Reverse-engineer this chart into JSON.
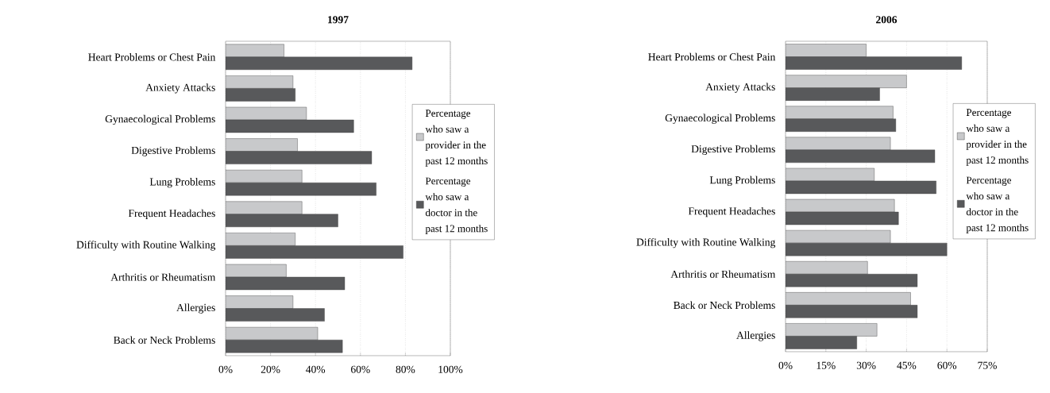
{
  "chart_data": [
    {
      "type": "bar",
      "orientation": "horizontal",
      "title": "1997",
      "categories": [
        "Heart Problems or Chest Pain",
        "Anxiety Attacks",
        "Gynaecological Problems",
        "Digestive Problems",
        "Lung Problems",
        "Frequent Headaches",
        "Difficulty with Routine Walking",
        "Arthritis or Rheumatism",
        "Allergies",
        "Back or Neck Problems"
      ],
      "series": [
        {
          "name": "Percentage who saw a provider in the past 12 months",
          "color": "#c8c9cb",
          "values": [
            26,
            30,
            36,
            32,
            34,
            34,
            31,
            27,
            30,
            41
          ]
        },
        {
          "name": "Percentage who saw a doctor in the past 12 months",
          "color": "#58595b",
          "values": [
            83,
            31,
            57,
            65,
            67,
            50,
            79,
            53,
            44,
            52
          ]
        }
      ],
      "xlim": [
        0,
        100
      ],
      "xticks": [
        {
          "value": 0,
          "label": "0%"
        },
        {
          "value": 20,
          "label": "20%"
        },
        {
          "value": 40,
          "label": "40%"
        },
        {
          "value": 60,
          "label": "60%"
        },
        {
          "value": 80,
          "label": "80%"
        },
        {
          "value": 100,
          "label": "100%"
        }
      ],
      "grid": "x",
      "legend": "right"
    },
    {
      "type": "bar",
      "orientation": "horizontal",
      "title": "2006",
      "categories": [
        "Heart Problems or Chest Pain",
        "Anxiety Attacks",
        "Gynaecological Problems",
        "Digestive Problems",
        "Lung Problems",
        "Frequent Headaches",
        "Difficulty with Routine Walking",
        "Arthritis or Rheumatism",
        "Back or Neck Problems",
        "Allergies"
      ],
      "series": [
        {
          "name": "Percentage who saw a provider in the past 12 months",
          "color": "#c8c9cb",
          "values": [
            30,
            45,
            40,
            39,
            33,
            40.5,
            39,
            30.5,
            46.5,
            34
          ]
        },
        {
          "name": "Percentage who saw a doctor in the past 12 months",
          "color": "#58595b",
          "values": [
            65.5,
            35,
            41,
            55.5,
            56,
            42,
            60,
            49,
            49,
            26.5
          ]
        }
      ],
      "xlim": [
        0,
        75
      ],
      "xticks": [
        {
          "value": 0,
          "label": "0%"
        },
        {
          "value": 15,
          "label": "15%"
        },
        {
          "value": 30,
          "label": "30%"
        },
        {
          "value": 45,
          "label": "45%"
        },
        {
          "value": 60,
          "label": "60%"
        },
        {
          "value": 75,
          "label": "75%"
        }
      ],
      "grid": "x",
      "legend": "right"
    }
  ]
}
